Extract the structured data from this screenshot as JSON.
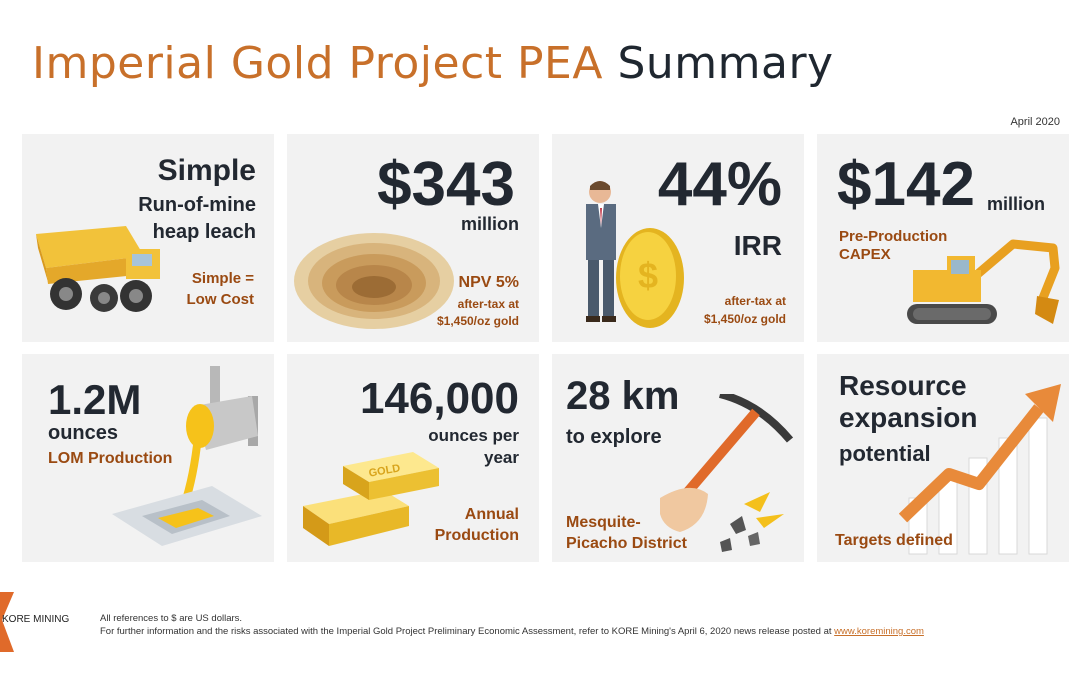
{
  "title": {
    "accent": "Imperial Gold Project PEA",
    "rest": "Summary"
  },
  "date": "April 2020",
  "cards": {
    "c1": {
      "line1": "Simple",
      "line2": "Run-of-mine",
      "line3": "heap leach",
      "sub1": "Simple =",
      "sub2": "Low Cost"
    },
    "c2": {
      "value": "$343",
      "unit": "million",
      "sub1": "NPV 5%",
      "sub2": "after-tax at",
      "sub3": "$1,450/oz gold"
    },
    "c3": {
      "value": "44%",
      "unit": "IRR",
      "sub1": "after-tax at",
      "sub2": "$1,450/oz gold"
    },
    "c4": {
      "value": "$142",
      "unit": "million",
      "sub1": "Pre-Production",
      "sub2": "CAPEX"
    },
    "c5": {
      "value": "1.2M",
      "unit": "ounces",
      "sub1": "LOM Production"
    },
    "c6": {
      "value": "146,000",
      "unit1": "ounces per",
      "unit2": "year",
      "sub1": "Annual",
      "sub2": "Production"
    },
    "c7": {
      "value": "28 km",
      "unit": "to explore",
      "sub1": "Mesquite-",
      "sub2": "Picacho District"
    },
    "c8": {
      "line1": "Resource",
      "line2": "expansion",
      "line3": "potential",
      "sub1": "Targets defined"
    }
  },
  "footer": {
    "logo_text": "KORE MINING",
    "line1": "All references to $ are US dollars.",
    "line2": "For further information and the risks associated with the Imperial Gold Project Preliminary Economic Assessment, refer to KORE Mining's April 6, 2020 news release posted at",
    "link": "www.koremining.com"
  },
  "icons": [
    "dump-truck-icon",
    "open-pit-icon",
    "businessman-coin-icon",
    "excavator-icon",
    "pouring-ladle-icon",
    "gold-bars-icon",
    "pickaxe-hand-icon",
    "growth-chart-arrow-icon",
    "kore-logo-icon"
  ],
  "colors": {
    "accent": "#c8702a",
    "dark": "#1f2730",
    "label": "#9a4a12",
    "card_bg": "#f2f2f2"
  }
}
